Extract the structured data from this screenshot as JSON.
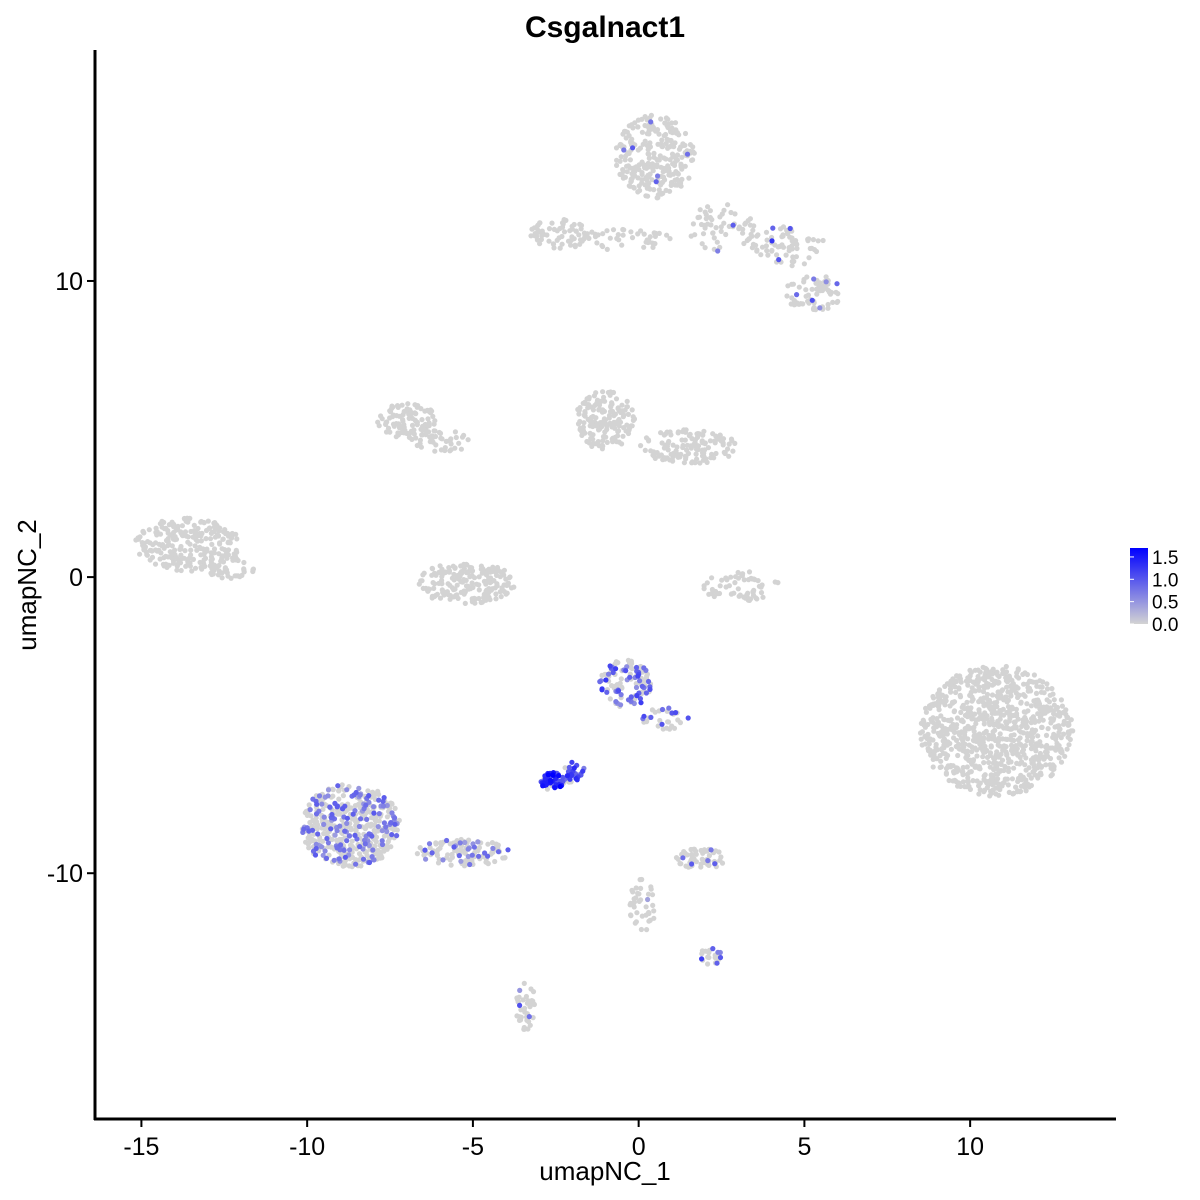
{
  "chart_data": {
    "type": "scatter",
    "title": "Csgalnact1",
    "xlabel": "umapNC_1",
    "ylabel": "umapNC_2",
    "xlim": [
      -16.4,
      14.4
    ],
    "ylim": [
      -18.3,
      17.8
    ],
    "x_ticks": [
      -15,
      -10,
      -5,
      0,
      5,
      10
    ],
    "y_ticks": [
      -10,
      0,
      10
    ],
    "x_tick_labels": [
      "-15",
      "-10",
      "-5",
      "0",
      "5",
      "10"
    ],
    "y_tick_labels": [
      "-10",
      "0",
      "10"
    ],
    "grid": false,
    "color_scale": {
      "low_color": "#d3d3d3",
      "high_color": "#0000ff",
      "min": 0.0,
      "max": 1.7,
      "breaks": [
        0.0,
        0.5,
        1.0,
        1.5
      ],
      "break_labels": [
        "0.0",
        "0.5",
        "1.0",
        "1.5"
      ],
      "legend_position": "right"
    },
    "clusters": [
      {
        "cx": 0.5,
        "cy": 14.2,
        "rx": 1.2,
        "ry": 1.4,
        "n": 260,
        "expr_frac": 0.02,
        "expr": 0.8
      },
      {
        "cx": 2.5,
        "cy": 11.8,
        "rx": 1.0,
        "ry": 0.8,
        "n": 60,
        "expr_frac": 0.04,
        "expr": 0.9
      },
      {
        "cx": 4.5,
        "cy": 11.2,
        "rx": 1.1,
        "ry": 0.7,
        "n": 70,
        "expr_frac": 0.05,
        "expr": 1.0
      },
      {
        "cx": 5.3,
        "cy": 9.6,
        "rx": 0.9,
        "ry": 0.6,
        "n": 70,
        "expr_frac": 0.08,
        "expr": 0.8
      },
      {
        "cx": -2.3,
        "cy": 11.6,
        "rx": 1.0,
        "ry": 0.5,
        "n": 70,
        "expr_frac": 0.0,
        "expr": 0
      },
      {
        "cx": -0.5,
        "cy": 11.4,
        "rx": 1.5,
        "ry": 0.35,
        "n": 40,
        "expr_frac": 0.0,
        "expr": 0
      },
      {
        "cx": -7.0,
        "cy": 5.3,
        "rx": 0.9,
        "ry": 0.6,
        "n": 100,
        "expr_frac": 0.0,
        "expr": 0
      },
      {
        "cx": -6.0,
        "cy": 4.6,
        "rx": 1.0,
        "ry": 0.4,
        "n": 40,
        "expr_frac": 0.0,
        "expr": 0
      },
      {
        "cx": -1.0,
        "cy": 5.3,
        "rx": 0.9,
        "ry": 1.0,
        "n": 160,
        "expr_frac": 0.0,
        "expr": 0
      },
      {
        "cx": 1.5,
        "cy": 4.4,
        "rx": 1.5,
        "ry": 0.6,
        "n": 130,
        "expr_frac": 0.0,
        "expr": 0
      },
      {
        "cx": -13.6,
        "cy": 1.1,
        "rx": 1.6,
        "ry": 0.9,
        "n": 240,
        "expr_frac": 0.0,
        "expr": 0
      },
      {
        "cx": -12.3,
        "cy": 0.3,
        "rx": 0.7,
        "ry": 0.4,
        "n": 40,
        "expr_frac": 0.0,
        "expr": 0
      },
      {
        "cx": -5.2,
        "cy": -0.2,
        "rx": 1.5,
        "ry": 0.7,
        "n": 200,
        "expr_frac": 0.0,
        "expr": 0
      },
      {
        "cx": 3.1,
        "cy": -0.3,
        "rx": 1.2,
        "ry": 0.5,
        "n": 60,
        "expr_frac": 0.0,
        "expr": 0
      },
      {
        "cx": 10.8,
        "cy": -5.2,
        "rx": 2.3,
        "ry": 2.2,
        "n": 900,
        "expr_frac": 0.0,
        "expr": 0
      },
      {
        "cx": -0.4,
        "cy": -3.6,
        "rx": 0.8,
        "ry": 0.8,
        "n": 110,
        "expr_frac": 0.45,
        "expr": 0.9
      },
      {
        "cx": 0.8,
        "cy": -4.8,
        "rx": 0.7,
        "ry": 0.4,
        "n": 30,
        "expr_frac": 0.3,
        "expr": 0.8
      },
      {
        "cx": -2.6,
        "cy": -6.9,
        "rx": 0.35,
        "ry": 0.3,
        "n": 60,
        "expr_frac": 0.85,
        "expr": 1.3
      },
      {
        "cx": -2.0,
        "cy": -6.6,
        "rx": 0.4,
        "ry": 0.35,
        "n": 30,
        "expr_frac": 0.7,
        "expr": 1.1
      },
      {
        "cx": -8.7,
        "cy": -8.4,
        "rx": 1.5,
        "ry": 1.4,
        "n": 480,
        "expr_frac": 0.28,
        "expr": 0.7
      },
      {
        "cx": -5.3,
        "cy": -9.3,
        "rx": 1.4,
        "ry": 0.45,
        "n": 110,
        "expr_frac": 0.22,
        "expr": 0.7
      },
      {
        "cx": 1.9,
        "cy": -9.5,
        "rx": 0.8,
        "ry": 0.35,
        "n": 60,
        "expr_frac": 0.1,
        "expr": 0.7
      },
      {
        "cx": 0.1,
        "cy": -11.2,
        "rx": 0.4,
        "ry": 1.0,
        "n": 40,
        "expr_frac": 0.04,
        "expr": 0.6
      },
      {
        "cx": 2.2,
        "cy": -12.8,
        "rx": 0.4,
        "ry": 0.3,
        "n": 20,
        "expr_frac": 0.3,
        "expr": 0.9
      },
      {
        "cx": -3.4,
        "cy": -14.5,
        "rx": 0.3,
        "ry": 0.8,
        "n": 40,
        "expr_frac": 0.1,
        "expr": 0.8
      }
    ]
  }
}
